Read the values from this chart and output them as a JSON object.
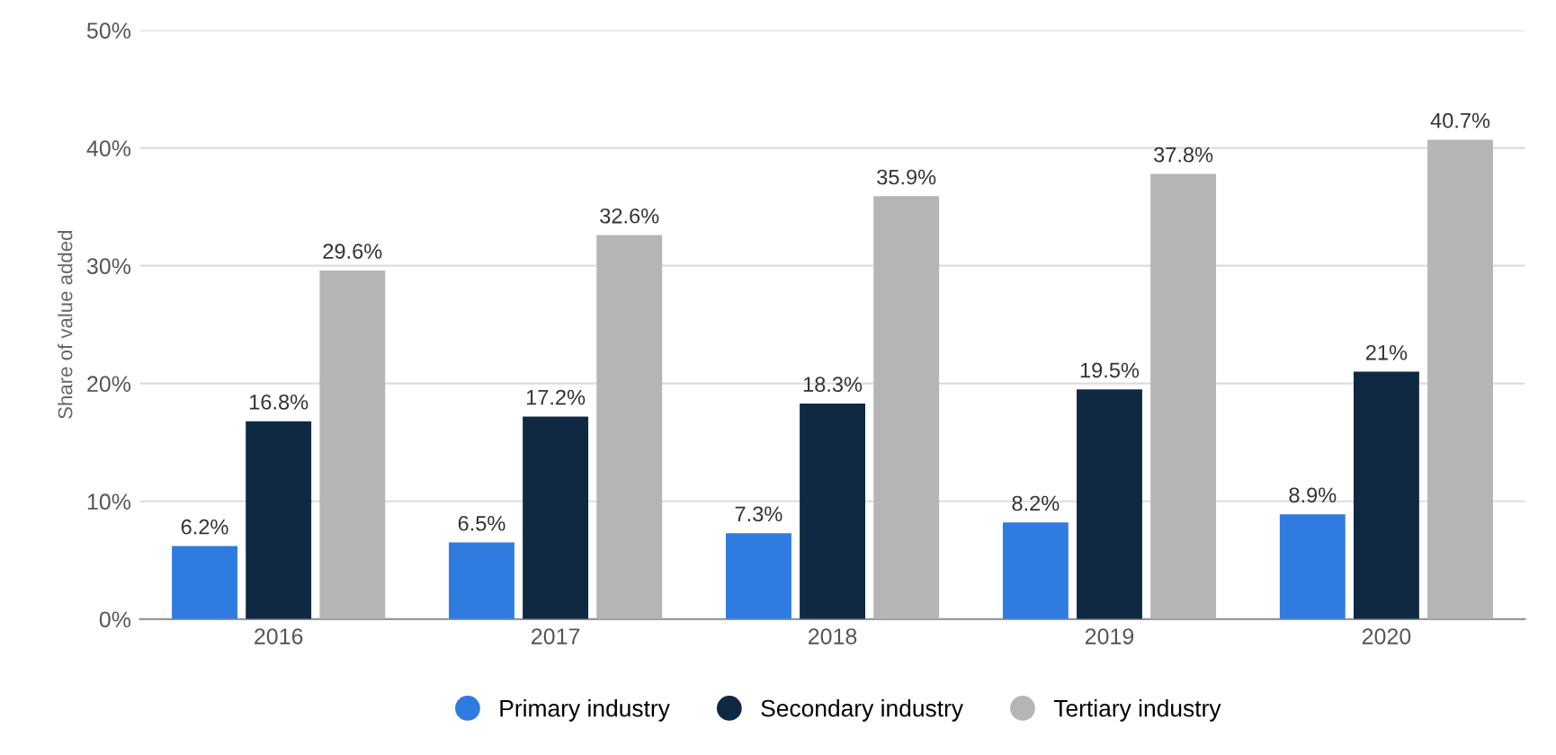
{
  "chart_data": {
    "type": "bar",
    "ylabel": "Share of value added",
    "categories": [
      "2016",
      "2017",
      "2018",
      "2019",
      "2020"
    ],
    "series": [
      {
        "name": "Primary industry",
        "color": "#2f7be0",
        "values": [
          6.2,
          6.5,
          7.3,
          8.2,
          8.9
        ],
        "value_labels": [
          "6.2%",
          "6.5%",
          "7.3%",
          "8.2%",
          "8.9%"
        ]
      },
      {
        "name": "Secondary industry",
        "color": "#0f2943",
        "values": [
          16.8,
          17.2,
          18.3,
          19.5,
          21
        ],
        "value_labels": [
          "16.8%",
          "17.2%",
          "18.3%",
          "19.5%",
          "21%"
        ]
      },
      {
        "name": "Tertiary industry",
        "color": "#b5b5b5",
        "values": [
          29.6,
          32.6,
          35.9,
          37.8,
          40.7
        ],
        "value_labels": [
          "29.6%",
          "32.6%",
          "35.9%",
          "37.8%",
          "40.7%"
        ]
      }
    ],
    "ylim": [
      0,
      50
    ],
    "yticks": [
      {
        "value": 0,
        "label": "0%"
      },
      {
        "value": 10,
        "label": "10%"
      },
      {
        "value": 20,
        "label": "20%"
      },
      {
        "value": 30,
        "label": "30%"
      },
      {
        "value": 40,
        "label": "40%"
      },
      {
        "value": 50,
        "label": "50%"
      }
    ],
    "grid": "y",
    "legend": "bottom"
  }
}
